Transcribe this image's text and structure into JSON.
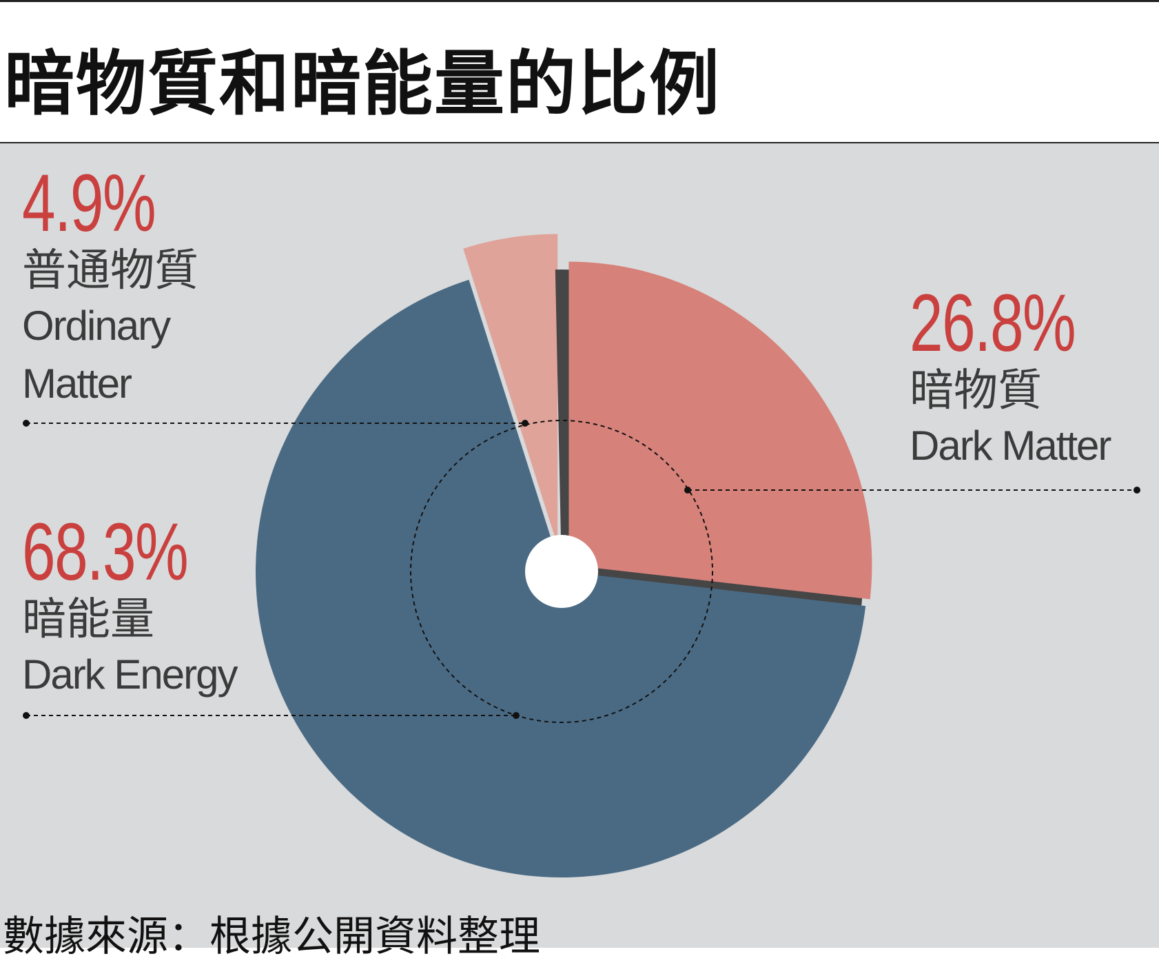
{
  "chart_data": {
    "type": "pie",
    "title": "暗物質和暗能量的比例",
    "values": [
      4.9,
      26.8,
      68.3
    ],
    "value_labels": [
      "4.9%",
      "26.8%",
      "68.3%"
    ],
    "labels": [
      "普通物質",
      "暗物質",
      "暗能量"
    ],
    "labels_en": [
      "Ordinary Matter",
      "Dark Matter",
      "Dark Energy"
    ],
    "colors": [
      "#e0a39a",
      "#d6817a",
      "#4a6a84"
    ],
    "source": "數據來源：根據公開資料整理"
  }
}
